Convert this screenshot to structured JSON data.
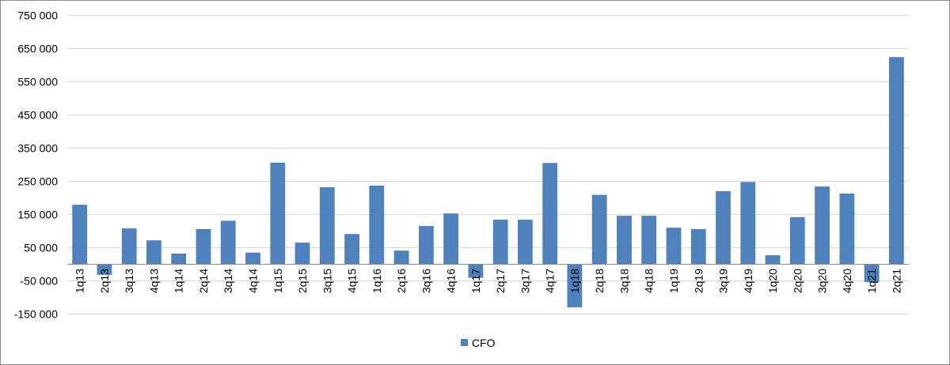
{
  "chart_data": {
    "type": "bar",
    "categories": [
      "1q13",
      "2q13",
      "3q13",
      "4q13",
      "1q14",
      "2q14",
      "3q14",
      "4q14",
      "1q15",
      "2q15",
      "3q15",
      "4q15",
      "1q16",
      "2q16",
      "3q16",
      "4q16",
      "1q17",
      "2q17",
      "3q17",
      "4q17",
      "1q18",
      "2q18",
      "3q18",
      "4q18",
      "1q19",
      "2q19",
      "3q19",
      "4q19",
      "1q20",
      "2q20",
      "3q20",
      "4q20",
      "1q21",
      "2q21"
    ],
    "series": [
      {
        "name": "CFO",
        "color": "#4f81bd",
        "values": [
          178000,
          -33000,
          107000,
          71000,
          31000,
          105000,
          130000,
          34000,
          305000,
          64000,
          231000,
          90000,
          236000,
          40000,
          114000,
          152000,
          -42000,
          133000,
          133000,
          304000,
          -131000,
          208000,
          145000,
          145000,
          109000,
          105000,
          219000,
          247000,
          26000,
          141000,
          233000,
          212000,
          -55000,
          623000
        ]
      }
    ],
    "yticks": [
      "750 000",
      "650 000",
      "550 000",
      "450 000",
      "350 000",
      "250 000",
      "150 000",
      "50 000",
      "-50 000",
      "-150 000"
    ],
    "ytick_values": [
      750000,
      650000,
      550000,
      450000,
      350000,
      250000,
      150000,
      50000,
      -50000,
      -150000
    ],
    "ylim": [
      -150000,
      750000
    ],
    "grid": true,
    "legend_position": "bottom",
    "title": "",
    "xlabel": "",
    "ylabel": ""
  }
}
